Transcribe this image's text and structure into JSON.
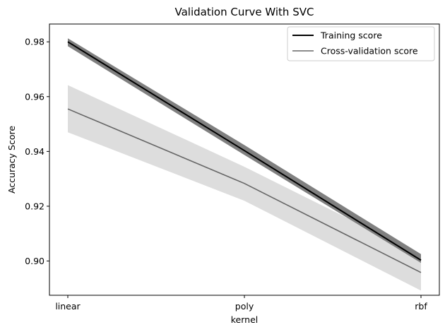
{
  "chart_data": {
    "type": "line",
    "title": "Validation Curve With SVC",
    "xlabel": "kernel",
    "ylabel": "Accuracy Score",
    "categories": [
      "linear",
      "poly",
      "rbf"
    ],
    "ylim": [
      0.8875,
      0.9865
    ],
    "yticks": [
      0.9,
      0.92,
      0.94,
      0.96,
      0.98
    ],
    "ytick_labels": [
      "0.90",
      "0.92",
      "0.94",
      "0.96",
      "0.98"
    ],
    "grid": false,
    "legend_position": "top-right",
    "series": [
      {
        "name": "Training score",
        "values": [
          0.98,
          0.9403,
          0.9003
        ],
        "lower": [
          0.9784,
          0.9387,
          0.8993
        ],
        "upper": [
          0.9813,
          0.9423,
          0.9025
        ],
        "color": "#000000",
        "band_color": "#808080"
      },
      {
        "name": "Cross-validation score",
        "values": [
          0.9555,
          0.9283,
          0.8958
        ],
        "lower": [
          0.947,
          0.922,
          0.8892
        ],
        "upper": [
          0.9642,
          0.9344,
          0.9023
        ],
        "color": "#666666",
        "band_color": "#dddddd"
      }
    ]
  }
}
